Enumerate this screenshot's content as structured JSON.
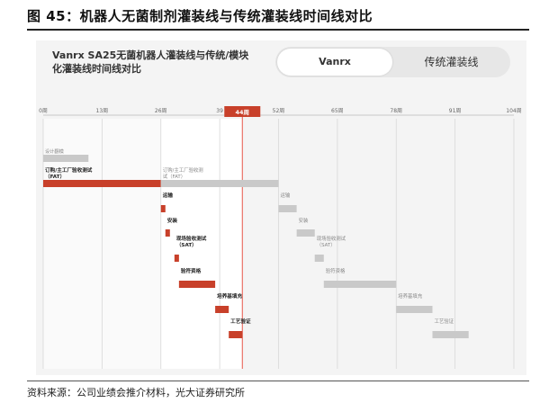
{
  "figure_title": "图 45：机器人无菌制剂灌装线与传统灌装线时间线对比",
  "source": "资料来源：公司业绩会推介材料，光大证券研究所",
  "panel": {
    "title": "Vanrx SA25无菌机器人灌装线与传统/模块化灌装线时间线对比",
    "toggle": {
      "option_a": "Vanrx",
      "option_b": "传统灌装线",
      "selected": "Vanrx"
    }
  },
  "colors": {
    "vanrx": "#c8402a",
    "traditional": "#c9c9c9",
    "marker": "#e8574a",
    "band": "#e9e9e9"
  },
  "chart_data": {
    "type": "gantt",
    "x_unit": "周",
    "xlim": [
      0,
      104
    ],
    "ticks": [
      {
        "value": 0,
        "label": "0周"
      },
      {
        "value": 13,
        "label": "13周"
      },
      {
        "value": 26,
        "label": "26周"
      },
      {
        "value": 39,
        "label": "39"
      },
      {
        "value": 52,
        "label": "52周"
      },
      {
        "value": 65,
        "label": "65周"
      },
      {
        "value": 78,
        "label": "78周"
      },
      {
        "value": 91,
        "label": "91周"
      },
      {
        "value": 104,
        "label": "104周"
      }
    ],
    "marker": {
      "value": 44,
      "label": "44周"
    },
    "shaded_range": [
      26,
      44
    ],
    "series": [
      {
        "name": "Vanrx",
        "tasks": [
          {
            "label": "设计翻模",
            "start": 0,
            "end": 10,
            "color": "#c9c9c9",
            "style": "small"
          },
          {
            "label": "订购/主工厂验收测试\n（FAT）",
            "start": 0,
            "end": 26,
            "style": "bold"
          },
          {
            "label": "运输",
            "start": 26,
            "end": 27,
            "style": "bold"
          },
          {
            "label": "安装",
            "start": 27,
            "end": 28,
            "style": "bold"
          },
          {
            "label": "现场验收测试\n（SAT）",
            "start": 29,
            "end": 30,
            "style": "bold"
          },
          {
            "label": "验符资格",
            "start": 30,
            "end": 38,
            "style": "bold"
          },
          {
            "label": "培养基填充",
            "start": 38,
            "end": 41,
            "style": "bold"
          },
          {
            "label": "工艺验证",
            "start": 41,
            "end": 44,
            "style": "bold"
          }
        ]
      },
      {
        "name": "传统灌装线",
        "tasks": [
          {
            "label": "订购/主工厂验收测\n试（FAT）",
            "start": 26,
            "end": 52
          },
          {
            "label": "运输",
            "start": 52,
            "end": 56
          },
          {
            "label": "安装",
            "start": 56,
            "end": 60
          },
          {
            "label": "现场验收测试\n（SAT）",
            "start": 60,
            "end": 62
          },
          {
            "label": "验符资格",
            "start": 62,
            "end": 78
          },
          {
            "label": "培养基填充",
            "start": 78,
            "end": 86
          },
          {
            "label": "工艺验证",
            "start": 86,
            "end": 94
          }
        ]
      }
    ]
  }
}
